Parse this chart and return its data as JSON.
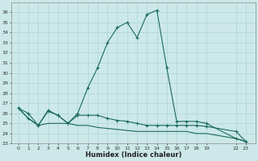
{
  "xlabel": "Humidex (Indice chaleur)",
  "bg_color": "#cce8e8",
  "grid_color": "#b0d8d8",
  "line_color": "#1a6b5a",
  "series1_x": [
    0,
    1,
    2,
    3,
    4,
    5,
    6,
    7,
    8,
    9,
    10,
    11,
    12,
    13,
    14,
    15,
    16,
    17,
    18,
    19,
    22,
    23
  ],
  "series1_y": [
    26.5,
    26.0,
    24.8,
    26.3,
    25.8,
    25.0,
    26.0,
    28.5,
    30.5,
    33.0,
    34.5,
    35.0,
    33.5,
    35.8,
    36.2,
    30.5,
    25.2,
    25.2,
    25.2,
    25.0,
    23.5,
    23.2
  ],
  "series2_x": [
    0,
    1,
    2,
    3,
    4,
    5,
    6,
    7,
    8,
    9,
    10,
    11,
    12,
    13,
    14,
    15,
    16,
    17,
    18,
    19,
    22,
    23
  ],
  "series2_y": [
    26.5,
    25.5,
    24.8,
    26.2,
    25.8,
    25.0,
    25.8,
    25.8,
    25.8,
    25.5,
    25.3,
    25.2,
    25.0,
    24.8,
    24.8,
    24.8,
    24.8,
    24.8,
    24.8,
    24.7,
    24.2,
    23.2
  ],
  "series3_x": [
    0,
    1,
    2,
    3,
    4,
    5,
    6,
    7,
    8,
    9,
    10,
    11,
    12,
    13,
    14,
    15,
    16,
    17,
    18,
    19,
    22,
    23
  ],
  "series3_y": [
    26.5,
    25.5,
    24.8,
    25.0,
    25.0,
    25.0,
    24.8,
    24.8,
    24.6,
    24.5,
    24.4,
    24.3,
    24.2,
    24.2,
    24.2,
    24.2,
    24.2,
    24.2,
    24.0,
    24.0,
    23.5,
    23.2
  ],
  "ylim": [
    23,
    37
  ],
  "yticks": [
    23,
    24,
    25,
    26,
    27,
    28,
    29,
    30,
    31,
    32,
    33,
    34,
    35,
    36
  ],
  "xtick_positions": [
    0,
    1,
    2,
    3,
    4,
    5,
    6,
    7,
    8,
    9,
    10,
    11,
    12,
    13,
    14,
    15,
    16,
    17,
    18,
    19,
    22,
    23
  ],
  "xtick_labels": [
    "0",
    "1",
    "2",
    "3",
    "4",
    "5",
    "6",
    "7",
    "8",
    "9",
    "10",
    "11",
    "12",
    "13",
    "14",
    "15",
    "16",
    "17",
    "18",
    "19",
    "22",
    "23"
  ],
  "xlim": [
    -0.7,
    24.0
  ]
}
